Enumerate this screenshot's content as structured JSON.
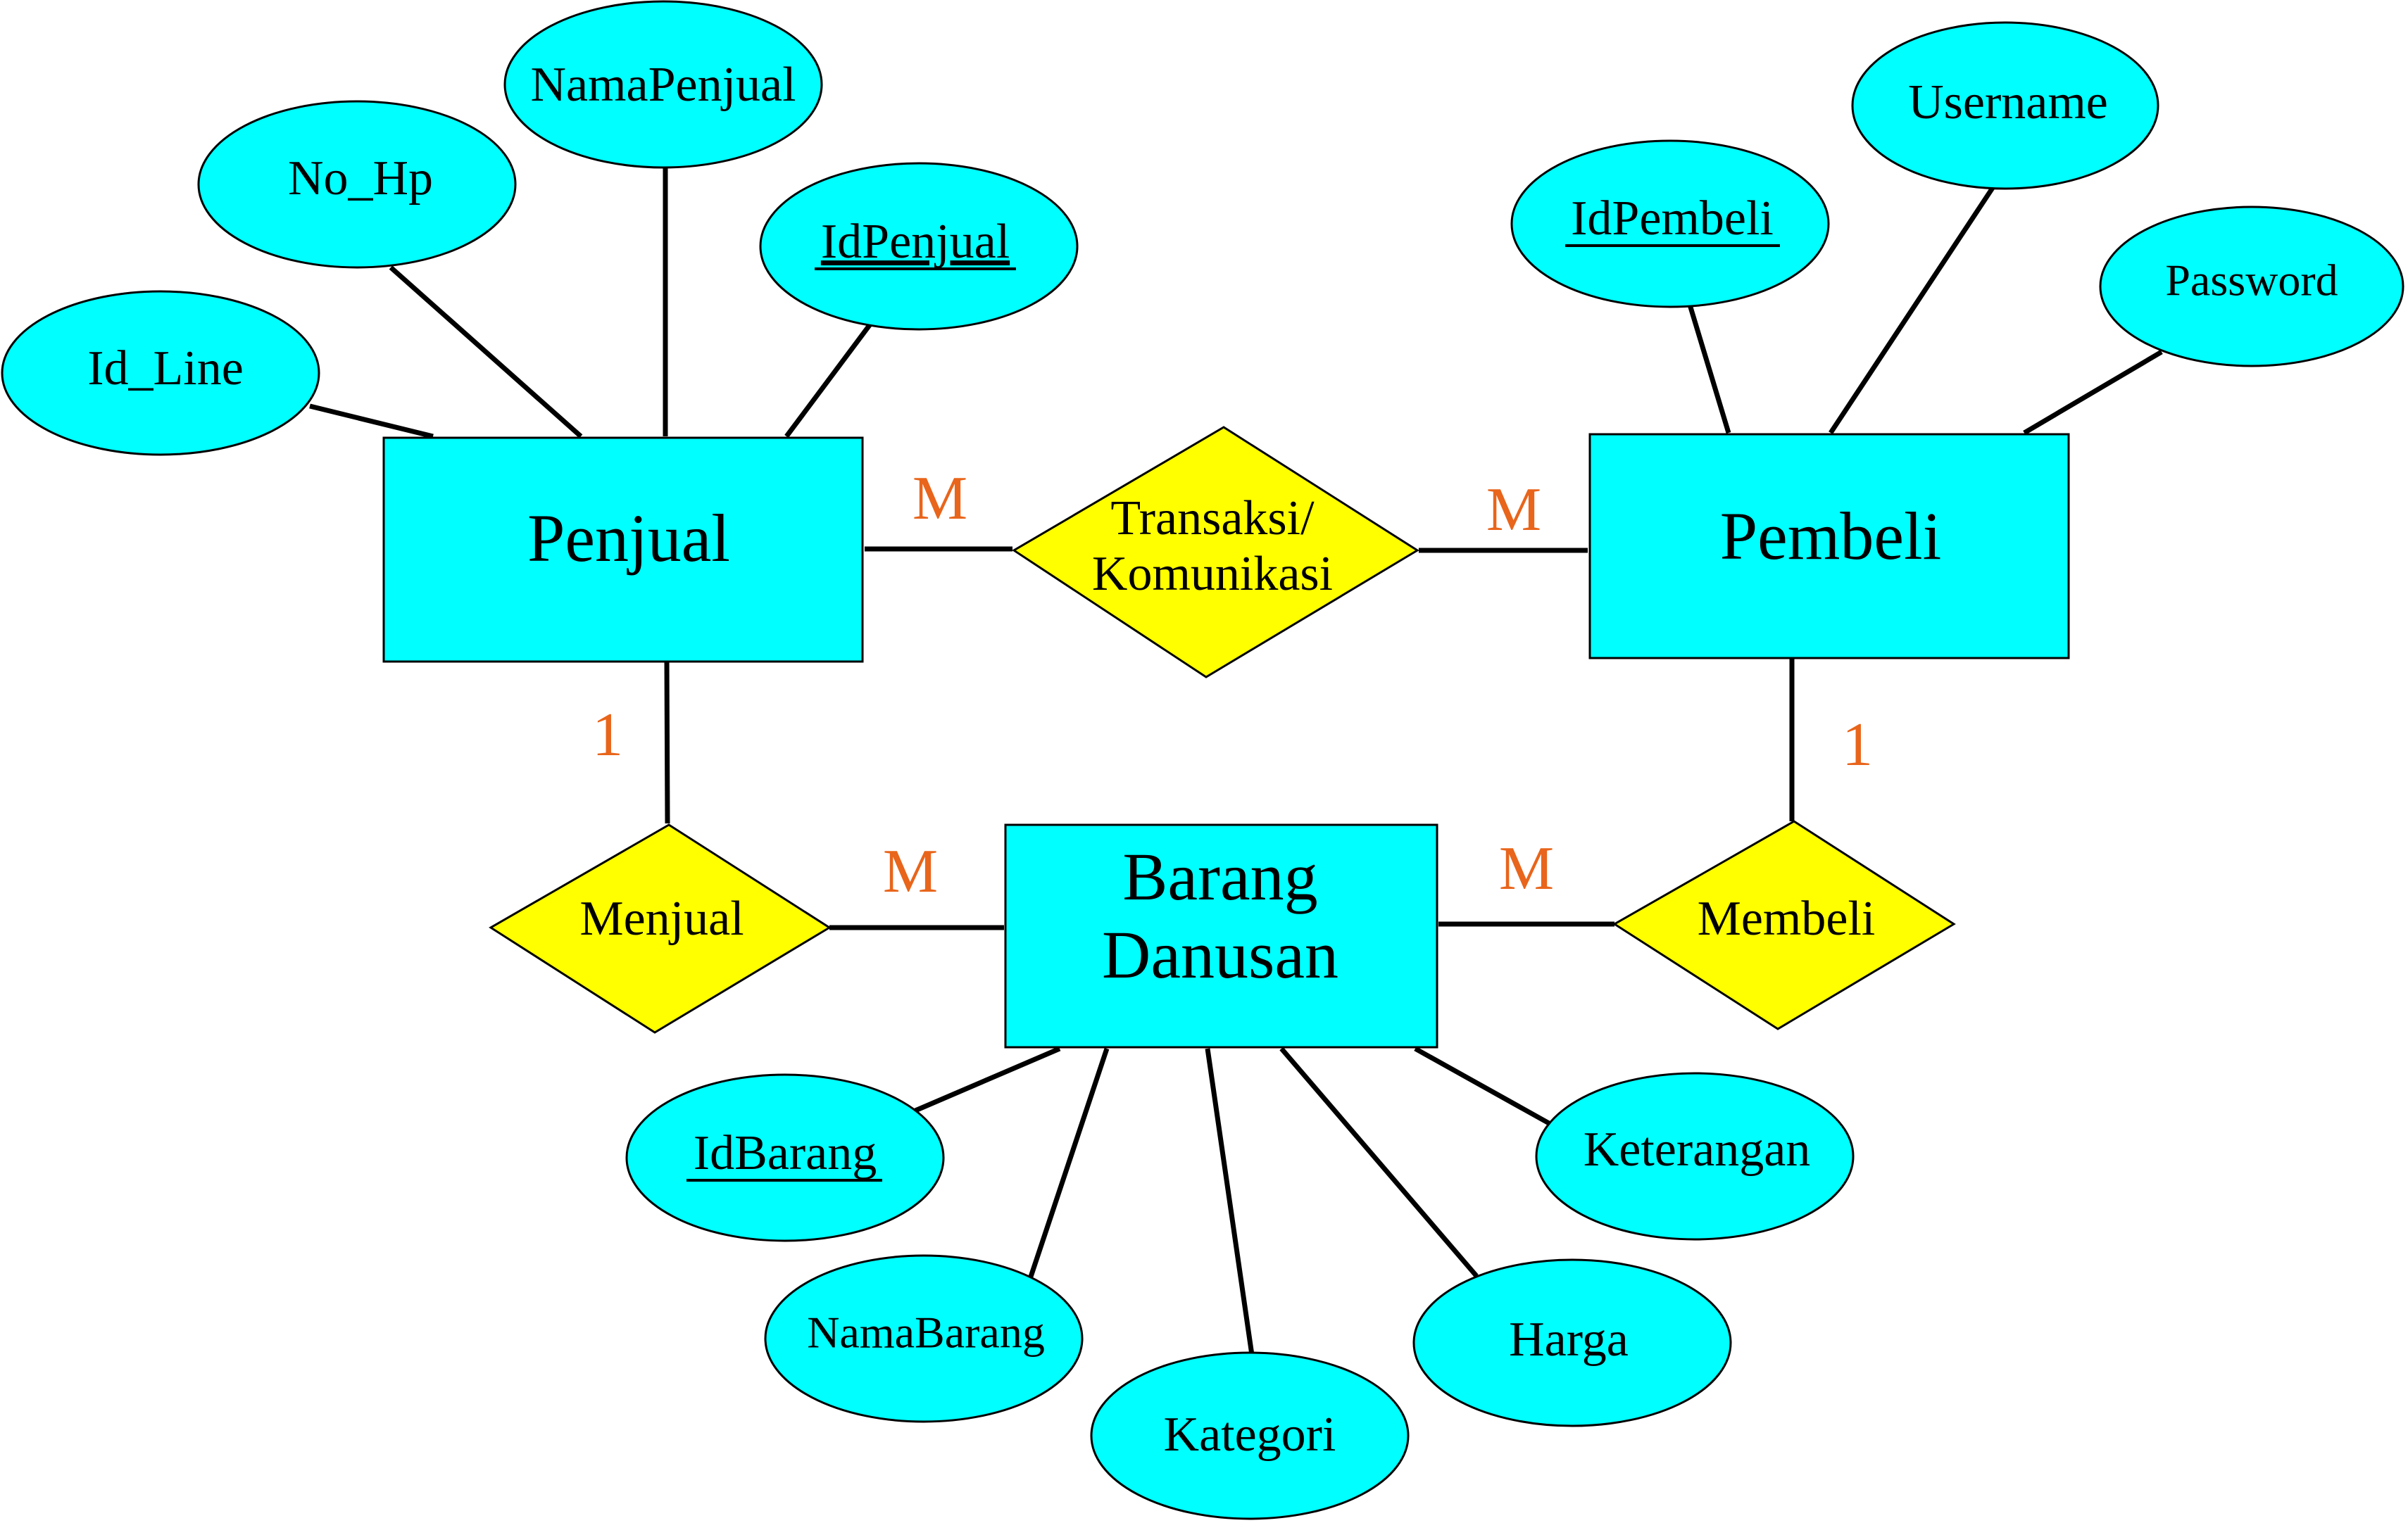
{
  "diagram": {
    "entities": {
      "penjual": "Penjual",
      "pembeli": "Pembeli",
      "barang_line1": "Barang",
      "barang_line2": "Danusan"
    },
    "relationships": {
      "transaksi_line1": "Transaksi/",
      "transaksi_line2": "Komunikasi",
      "menjual": "Menjual",
      "membeli": "Membeli"
    },
    "attributes": {
      "id_line": "Id_Line",
      "no_hp": "No_Hp",
      "nama_penjual": "NamaPenjual",
      "id_penjual": "IdPenjual",
      "id_pembeli": "IdPembeli",
      "username": "Username",
      "password": "Password",
      "id_barang": "IdBarang",
      "nama_barang": "NamaBarang",
      "kategori": "Kategori",
      "harga": "Harga",
      "keterangan": "Keterangan"
    },
    "cardinalities": {
      "penjual_transaksi": "M",
      "pembeli_transaksi": "M",
      "penjual_menjual": "1",
      "menjual_barang": "M",
      "barang_membeli": "M",
      "pembeli_membeli": "1"
    },
    "colors": {
      "entity": "#00ffff",
      "attribute": "#00ffff",
      "relationship": "#ffff00",
      "cardinality": "#e8651b"
    }
  }
}
